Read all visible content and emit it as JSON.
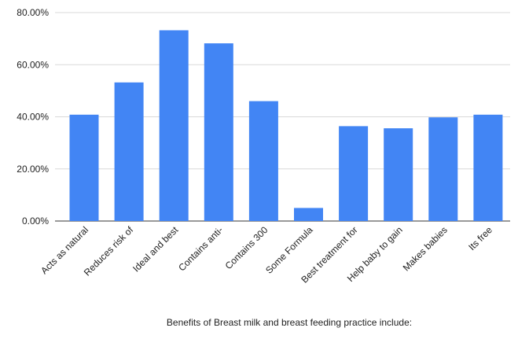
{
  "chart_data": {
    "type": "bar",
    "title": "",
    "xlabel": "Benefits of Breast milk and breast feeding practice include:",
    "ylabel": "",
    "categories": [
      "Acts as natural",
      "Reduces risk of",
      "Ideal and best",
      "Contains anti-",
      "Contains 300",
      "Some Formula",
      "Best treatment for",
      "Help baby to gain",
      "Makes babies",
      "Its free"
    ],
    "values": [
      40.8,
      53.2,
      73.2,
      68.2,
      46.0,
      5.0,
      36.4,
      35.6,
      39.8,
      40.8
    ],
    "yticks": [
      "0.00%",
      "20.00%",
      "40.00%",
      "60.00%",
      "80.00%"
    ],
    "ylim": [
      0,
      80
    ],
    "grid": true,
    "legend": "none",
    "bar_color": "#4285f4"
  }
}
